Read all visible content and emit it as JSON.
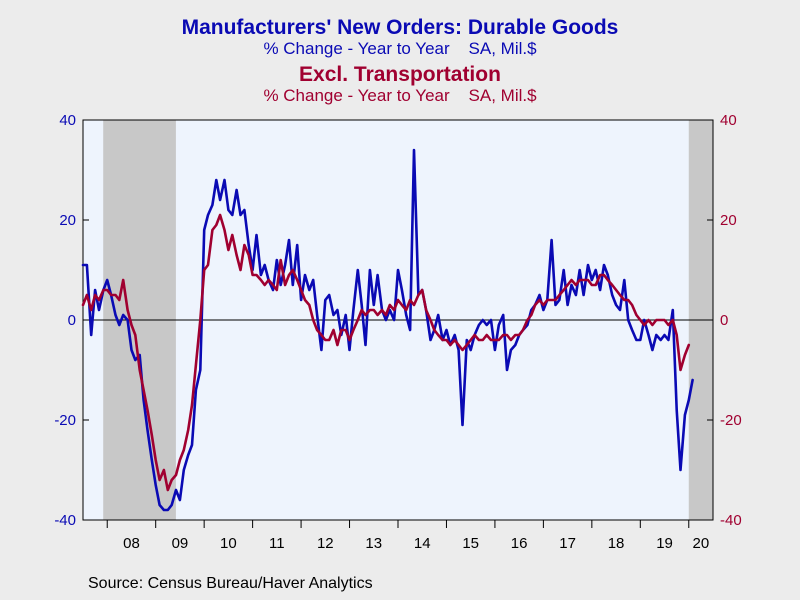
{
  "titles": {
    "main": "Manufacturers' New Orders: Durable Goods",
    "main_sub": "% Change - Year to Year    SA, Mil.$",
    "second": "Excl. Transportation",
    "second_sub": "% Change - Year to Year    SA, Mil.$"
  },
  "source": "Source:  Census Bureau/Haver Analytics",
  "colors": {
    "background": "#ECECEC",
    "plot_background": "#EEF4FD",
    "recession": "#C8C8C8",
    "series_blue": "#0A0AB4",
    "series_red": "#A00030",
    "axis_text_left": "#0A0AB4",
    "axis_text_right": "#A00030"
  },
  "chart_data": {
    "type": "line",
    "x_range": [
      2007.5,
      2020.5
    ],
    "ylim": [
      -40,
      40
    ],
    "y_ticks": [
      -40,
      -20,
      0,
      20,
      40
    ],
    "y_tick_labels": [
      "-40",
      "-20",
      "0",
      "20",
      "40"
    ],
    "x_ticks": [
      "08",
      "09",
      "10",
      "11",
      "12",
      "13",
      "14",
      "15",
      "16",
      "17",
      "18",
      "19",
      "20"
    ],
    "recessions": [
      [
        2007.917,
        2009.417
      ],
      [
        2020.0,
        2020.5
      ]
    ],
    "zero_line": true,
    "series": [
      {
        "name": "Manufacturers' New Orders: Durable Goods",
        "color": "#0A0AB4",
        "points": [
          [
            2007.5,
            11
          ],
          [
            2007.58,
            11
          ],
          [
            2007.67,
            -3
          ],
          [
            2007.75,
            6
          ],
          [
            2007.83,
            2
          ],
          [
            2007.92,
            6
          ],
          [
            2008.0,
            8
          ],
          [
            2008.08,
            5
          ],
          [
            2008.17,
            1
          ],
          [
            2008.25,
            -1
          ],
          [
            2008.33,
            1
          ],
          [
            2008.42,
            0
          ],
          [
            2008.5,
            -6
          ],
          [
            2008.58,
            -8
          ],
          [
            2008.67,
            -7
          ],
          [
            2008.75,
            -16
          ],
          [
            2008.83,
            -22
          ],
          [
            2008.92,
            -28
          ],
          [
            2009.0,
            -33
          ],
          [
            2009.08,
            -37
          ],
          [
            2009.17,
            -38
          ],
          [
            2009.25,
            -38
          ],
          [
            2009.33,
            -37
          ],
          [
            2009.42,
            -34
          ],
          [
            2009.5,
            -36
          ],
          [
            2009.58,
            -30
          ],
          [
            2009.67,
            -27
          ],
          [
            2009.75,
            -25
          ],
          [
            2009.83,
            -14
          ],
          [
            2009.92,
            -10
          ],
          [
            2010.0,
            18
          ],
          [
            2010.08,
            21
          ],
          [
            2010.17,
            23
          ],
          [
            2010.25,
            28
          ],
          [
            2010.33,
            24
          ],
          [
            2010.42,
            28
          ],
          [
            2010.5,
            22
          ],
          [
            2010.58,
            21
          ],
          [
            2010.67,
            26
          ],
          [
            2010.75,
            21
          ],
          [
            2010.83,
            22
          ],
          [
            2010.92,
            15
          ],
          [
            2011.0,
            10
          ],
          [
            2011.08,
            17
          ],
          [
            2011.17,
            9
          ],
          [
            2011.25,
            11
          ],
          [
            2011.33,
            8
          ],
          [
            2011.42,
            6
          ],
          [
            2011.5,
            12
          ],
          [
            2011.58,
            7
          ],
          [
            2011.67,
            11
          ],
          [
            2011.75,
            16
          ],
          [
            2011.83,
            7
          ],
          [
            2011.92,
            15
          ],
          [
            2012.0,
            4
          ],
          [
            2012.08,
            9
          ],
          [
            2012.17,
            6
          ],
          [
            2012.25,
            8
          ],
          [
            2012.33,
            1
          ],
          [
            2012.42,
            -6
          ],
          [
            2012.5,
            4
          ],
          [
            2012.58,
            5
          ],
          [
            2012.67,
            1
          ],
          [
            2012.75,
            2
          ],
          [
            2012.83,
            -3
          ],
          [
            2012.92,
            1
          ],
          [
            2013.0,
            -6
          ],
          [
            2013.08,
            2
          ],
          [
            2013.17,
            10
          ],
          [
            2013.25,
            3
          ],
          [
            2013.33,
            -5
          ],
          [
            2013.42,
            10
          ],
          [
            2013.5,
            3
          ],
          [
            2013.58,
            9
          ],
          [
            2013.67,
            2
          ],
          [
            2013.75,
            0
          ],
          [
            2013.83,
            2
          ],
          [
            2013.92,
            0
          ],
          [
            2014.0,
            10
          ],
          [
            2014.08,
            6
          ],
          [
            2014.17,
            1
          ],
          [
            2014.25,
            -2
          ],
          [
            2014.33,
            34
          ],
          [
            2014.42,
            5
          ],
          [
            2014.5,
            6
          ],
          [
            2014.58,
            2
          ],
          [
            2014.67,
            -4
          ],
          [
            2014.75,
            -2
          ],
          [
            2014.83,
            1
          ],
          [
            2014.92,
            -4
          ],
          [
            2015.0,
            -2
          ],
          [
            2015.08,
            -5
          ],
          [
            2015.17,
            -3
          ],
          [
            2015.25,
            -6
          ],
          [
            2015.33,
            -21
          ],
          [
            2015.42,
            -4
          ],
          [
            2015.5,
            -6
          ],
          [
            2015.58,
            -3
          ],
          [
            2015.67,
            -1
          ],
          [
            2015.75,
            0
          ],
          [
            2015.83,
            -1
          ],
          [
            2015.92,
            0
          ],
          [
            2016.0,
            -6
          ],
          [
            2016.08,
            -1
          ],
          [
            2016.17,
            1
          ],
          [
            2016.25,
            -10
          ],
          [
            2016.33,
            -6
          ],
          [
            2016.42,
            -5
          ],
          [
            2016.5,
            -3
          ],
          [
            2016.58,
            -2
          ],
          [
            2016.67,
            -1
          ],
          [
            2016.75,
            2
          ],
          [
            2016.83,
            3
          ],
          [
            2016.92,
            5
          ],
          [
            2017.0,
            2
          ],
          [
            2017.08,
            4
          ],
          [
            2017.17,
            16
          ],
          [
            2017.25,
            3
          ],
          [
            2017.33,
            4
          ],
          [
            2017.42,
            10
          ],
          [
            2017.5,
            3
          ],
          [
            2017.58,
            7
          ],
          [
            2017.67,
            5
          ],
          [
            2017.75,
            10
          ],
          [
            2017.83,
            5
          ],
          [
            2017.92,
            11
          ],
          [
            2018.0,
            8
          ],
          [
            2018.08,
            10
          ],
          [
            2018.17,
            6
          ],
          [
            2018.25,
            11
          ],
          [
            2018.33,
            9
          ],
          [
            2018.42,
            5
          ],
          [
            2018.5,
            3
          ],
          [
            2018.58,
            2
          ],
          [
            2018.67,
            8
          ],
          [
            2018.75,
            0
          ],
          [
            2018.83,
            -2
          ],
          [
            2018.92,
            -4
          ],
          [
            2019.0,
            -4
          ],
          [
            2019.08,
            0
          ],
          [
            2019.17,
            -3
          ],
          [
            2019.25,
            -6
          ],
          [
            2019.33,
            -3
          ],
          [
            2019.42,
            -4
          ],
          [
            2019.5,
            -3
          ],
          [
            2019.58,
            -4
          ],
          [
            2019.67,
            2
          ],
          [
            2019.75,
            -18
          ],
          [
            2019.83,
            -30
          ],
          [
            2019.92,
            -19
          ],
          [
            2020.0,
            -16
          ],
          [
            2020.08,
            -12
          ]
        ]
      },
      {
        "name": "Excl. Transportation",
        "color": "#A00030",
        "points": [
          [
            2007.5,
            3
          ],
          [
            2007.58,
            5
          ],
          [
            2007.67,
            2
          ],
          [
            2007.75,
            5
          ],
          [
            2007.83,
            4
          ],
          [
            2007.92,
            6
          ],
          [
            2008.0,
            6
          ],
          [
            2008.08,
            5
          ],
          [
            2008.17,
            5
          ],
          [
            2008.25,
            4
          ],
          [
            2008.33,
            8
          ],
          [
            2008.42,
            2
          ],
          [
            2008.5,
            -1
          ],
          [
            2008.58,
            -3
          ],
          [
            2008.67,
            -10
          ],
          [
            2008.75,
            -14
          ],
          [
            2008.83,
            -18
          ],
          [
            2008.92,
            -23
          ],
          [
            2009.0,
            -28
          ],
          [
            2009.08,
            -32
          ],
          [
            2009.17,
            -30
          ],
          [
            2009.25,
            -34
          ],
          [
            2009.33,
            -32
          ],
          [
            2009.42,
            -31
          ],
          [
            2009.5,
            -28
          ],
          [
            2009.58,
            -26
          ],
          [
            2009.67,
            -22
          ],
          [
            2009.75,
            -17
          ],
          [
            2009.83,
            -9
          ],
          [
            2009.92,
            0
          ],
          [
            2010.0,
            10
          ],
          [
            2010.08,
            11
          ],
          [
            2010.17,
            18
          ],
          [
            2010.25,
            19
          ],
          [
            2010.33,
            21
          ],
          [
            2010.42,
            18
          ],
          [
            2010.5,
            14
          ],
          [
            2010.58,
            17
          ],
          [
            2010.67,
            13
          ],
          [
            2010.75,
            10
          ],
          [
            2010.83,
            15
          ],
          [
            2010.92,
            13
          ],
          [
            2011.0,
            9
          ],
          [
            2011.08,
            9
          ],
          [
            2011.17,
            8
          ],
          [
            2011.25,
            7
          ],
          [
            2011.33,
            8
          ],
          [
            2011.42,
            7
          ],
          [
            2011.5,
            6
          ],
          [
            2011.58,
            12
          ],
          [
            2011.67,
            7
          ],
          [
            2011.75,
            9
          ],
          [
            2011.83,
            10
          ],
          [
            2011.92,
            8
          ],
          [
            2012.0,
            6
          ],
          [
            2012.08,
            4
          ],
          [
            2012.17,
            3
          ],
          [
            2012.25,
            0
          ],
          [
            2012.33,
            -2
          ],
          [
            2012.42,
            -3
          ],
          [
            2012.5,
            -4
          ],
          [
            2012.58,
            -4
          ],
          [
            2012.67,
            -2
          ],
          [
            2012.75,
            -5
          ],
          [
            2012.83,
            -2
          ],
          [
            2012.92,
            -2
          ],
          [
            2013.0,
            -4
          ],
          [
            2013.08,
            -2
          ],
          [
            2013.17,
            0
          ],
          [
            2013.25,
            2
          ],
          [
            2013.33,
            1
          ],
          [
            2013.42,
            2
          ],
          [
            2013.5,
            2
          ],
          [
            2013.58,
            1
          ],
          [
            2013.67,
            2
          ],
          [
            2013.75,
            1
          ],
          [
            2013.83,
            3
          ],
          [
            2013.92,
            2
          ],
          [
            2014.0,
            4
          ],
          [
            2014.08,
            3
          ],
          [
            2014.17,
            2
          ],
          [
            2014.25,
            4
          ],
          [
            2014.33,
            3
          ],
          [
            2014.42,
            5
          ],
          [
            2014.5,
            6
          ],
          [
            2014.58,
            2
          ],
          [
            2014.67,
            0
          ],
          [
            2014.75,
            -2
          ],
          [
            2014.83,
            -3
          ],
          [
            2014.92,
            -4
          ],
          [
            2015.0,
            -4
          ],
          [
            2015.08,
            -5
          ],
          [
            2015.17,
            -4
          ],
          [
            2015.25,
            -5
          ],
          [
            2015.33,
            -6
          ],
          [
            2015.42,
            -5
          ],
          [
            2015.5,
            -4
          ],
          [
            2015.58,
            -3
          ],
          [
            2015.67,
            -4
          ],
          [
            2015.75,
            -4
          ],
          [
            2015.83,
            -3
          ],
          [
            2015.92,
            -4
          ],
          [
            2016.0,
            -4
          ],
          [
            2016.08,
            -4
          ],
          [
            2016.17,
            -3
          ],
          [
            2016.25,
            -3
          ],
          [
            2016.33,
            -4
          ],
          [
            2016.42,
            -3
          ],
          [
            2016.5,
            -3
          ],
          [
            2016.58,
            -2
          ],
          [
            2016.67,
            0
          ],
          [
            2016.75,
            1
          ],
          [
            2016.83,
            3
          ],
          [
            2016.92,
            4
          ],
          [
            2017.0,
            3
          ],
          [
            2017.08,
            4
          ],
          [
            2017.17,
            4
          ],
          [
            2017.25,
            4
          ],
          [
            2017.33,
            5
          ],
          [
            2017.42,
            6
          ],
          [
            2017.5,
            7
          ],
          [
            2017.58,
            8
          ],
          [
            2017.67,
            7
          ],
          [
            2017.75,
            8
          ],
          [
            2017.83,
            8
          ],
          [
            2017.92,
            8
          ],
          [
            2018.0,
            7
          ],
          [
            2018.08,
            7
          ],
          [
            2018.17,
            9
          ],
          [
            2018.25,
            9
          ],
          [
            2018.33,
            8
          ],
          [
            2018.42,
            7
          ],
          [
            2018.5,
            6
          ],
          [
            2018.58,
            5
          ],
          [
            2018.67,
            4
          ],
          [
            2018.75,
            4
          ],
          [
            2018.83,
            3
          ],
          [
            2018.92,
            1
          ],
          [
            2019.0,
            0
          ],
          [
            2019.08,
            -1
          ],
          [
            2019.17,
            0
          ],
          [
            2019.25,
            -1
          ],
          [
            2019.33,
            0
          ],
          [
            2019.42,
            0
          ],
          [
            2019.5,
            0
          ],
          [
            2019.58,
            -1
          ],
          [
            2019.67,
            0
          ],
          [
            2019.75,
            -3
          ],
          [
            2019.83,
            -10
          ],
          [
            2019.92,
            -7
          ],
          [
            2020.0,
            -5
          ]
        ]
      }
    ]
  }
}
